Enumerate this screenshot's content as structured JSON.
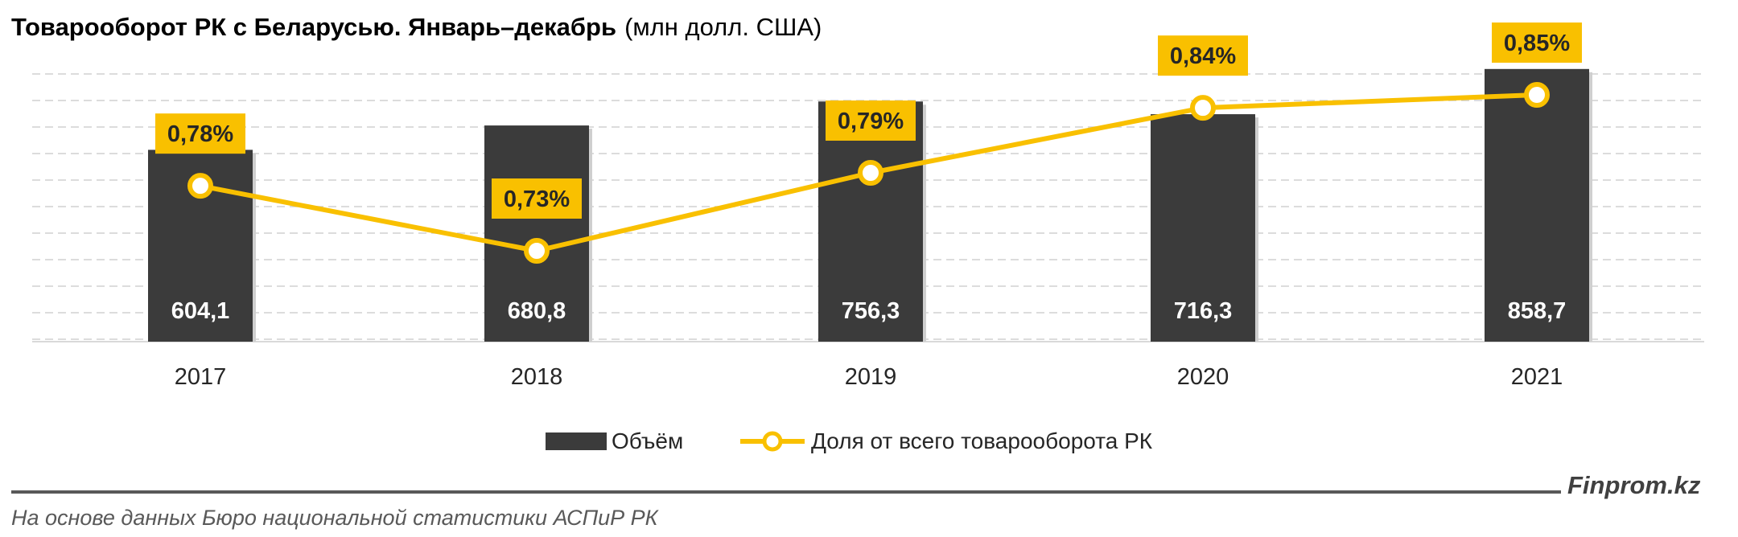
{
  "title": {
    "bold": "Товарооборот РК с Беларусью. Январь–декабрь",
    "unit": "(млн долл. США)"
  },
  "chart_data": {
    "type": "bar",
    "categories": [
      "2017",
      "2018",
      "2019",
      "2020",
      "2021"
    ],
    "series": [
      {
        "name": "Объём",
        "type": "bar",
        "values": [
          604.1,
          680.8,
          756.3,
          716.3,
          858.7
        ],
        "labels": [
          "604,1",
          "680,8",
          "756,3",
          "716,3",
          "858,7"
        ]
      },
      {
        "name": "Доля от всего товарооборота РК",
        "type": "line",
        "values": [
          0.78,
          0.73,
          0.79,
          0.84,
          0.85
        ],
        "labels": [
          "0,78%",
          "0,73%",
          "0,79%",
          "0,84%",
          "0,85%"
        ]
      }
    ],
    "bar_ylim": [
      0,
      1000
    ],
    "line_ylim": [
      0.71,
      0.87
    ],
    "grid": true,
    "legend": "bottom-center"
  },
  "colors": {
    "bar": "#3b3b3b",
    "line": "#f9c000",
    "label_bg": "#f9c000",
    "grid": "#d0d0d0",
    "text": "#262626"
  },
  "footer": {
    "brand": "Finprom.kz",
    "source": "На основе данных Бюро национальной статистики АСПиР РК"
  }
}
